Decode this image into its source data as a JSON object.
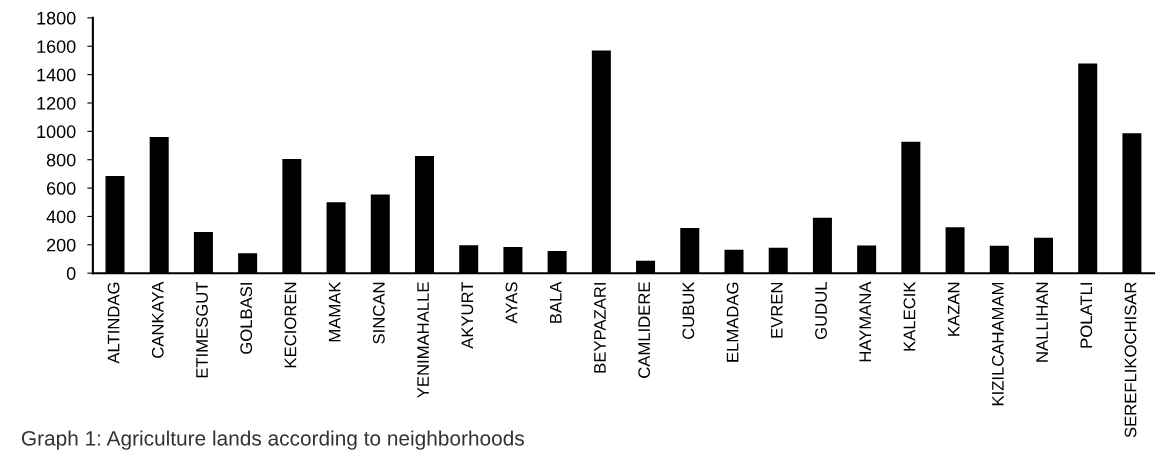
{
  "chart_data": {
    "type": "bar",
    "categories": [
      "ALTINDAG",
      "CANKAYA",
      "ETIMESGUT",
      "GOLBASI",
      "KECIOREN",
      "MAMAK",
      "SINCAN",
      "YENIMAHALLE",
      "AKYURT",
      "AYAS",
      "BALA",
      "BEYPAZARI",
      "CAMLIDERE",
      "CUBUK",
      "ELMADAG",
      "EVREN",
      "GUDUL",
      "HAYMANA",
      "KALECIK",
      "KAZAN",
      "KIZILCAHAMAM",
      "NALLIHAN",
      "POLATLI",
      "SEREFLIKOCHISAR"
    ],
    "values": [
      685,
      960,
      290,
      140,
      805,
      500,
      555,
      827,
      197,
      184,
      157,
      1570,
      87,
      318,
      166,
      179,
      391,
      196,
      926,
      323,
      193,
      250,
      1478,
      986
    ],
    "color": "#000000",
    "ylim": [
      0,
      1800
    ],
    "yticks": [
      0,
      200,
      400,
      600,
      800,
      1000,
      1200,
      1400,
      1600,
      1800
    ],
    "grid": false,
    "annotations": [
      "Graph 1: Agriculture lands according to neighborhoods"
    ]
  }
}
